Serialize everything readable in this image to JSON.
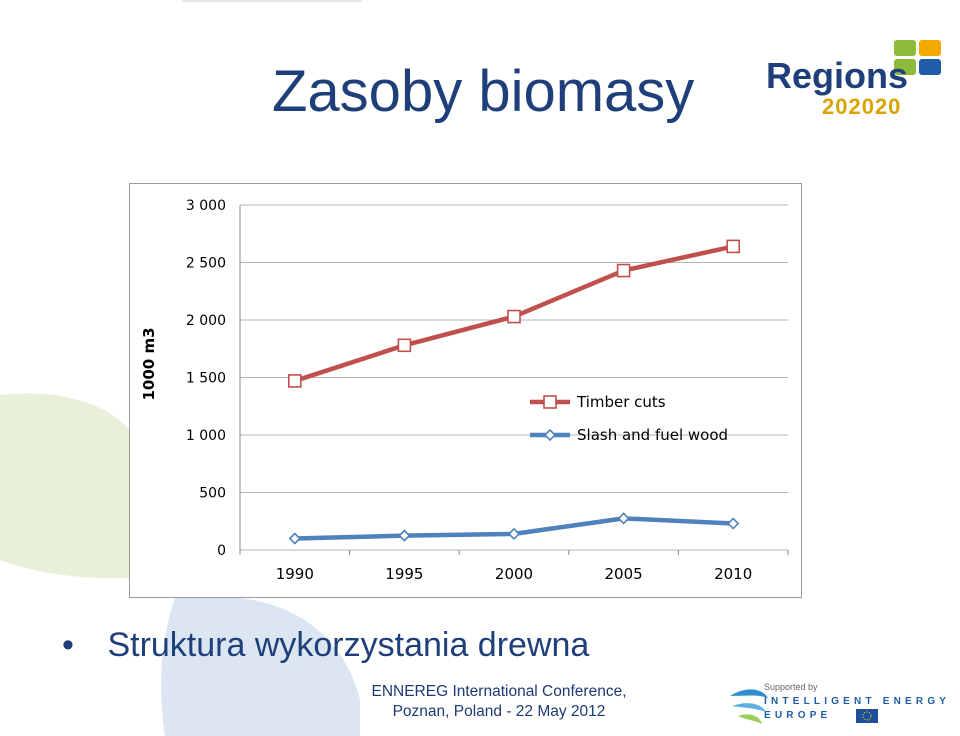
{
  "slide": {
    "title": "Zasoby biomasy",
    "bullet": "Struktura wykorzystania drewna",
    "footer_line1": "ENNEREG International Conference,",
    "footer_line2": "Poznan, Poland - 22 May 2012"
  },
  "logo": {
    "word": "Regions",
    "number": "202020",
    "icon": "four-squares-logo-icon"
  },
  "ie_logo": {
    "supported": "Supported by",
    "line1": "INTELLIGENT ENERGY",
    "line2": "EUROPE",
    "icon": "eu-flag-icon"
  },
  "colors": {
    "title": "#1f3f7a",
    "timber": "#c0504d",
    "slash": "#4f81bd",
    "bg_green": "#e9f0d9",
    "bg_blue": "#dce6f2"
  },
  "chart_data": {
    "type": "line",
    "title": "",
    "xlabel": "",
    "ylabel": "1000 m3",
    "x": [
      1990,
      1995,
      2000,
      2005,
      2010
    ],
    "xticks": [
      "1990",
      "1995",
      "2000",
      "2005",
      "2010"
    ],
    "yticks": [
      "0",
      "500",
      "1 000",
      "1 500",
      "2 000",
      "2 500",
      "3 000"
    ],
    "ylim": [
      0,
      3000
    ],
    "grid": true,
    "legend": "right",
    "series": [
      {
        "name": "Timber cuts",
        "values": [
          1470,
          1780,
          2030,
          2430,
          2640
        ],
        "color": "#c0504d",
        "marker": "square"
      },
      {
        "name": "Slash and fuel wood",
        "values": [
          100,
          125,
          140,
          275,
          230
        ],
        "color": "#4f81bd",
        "marker": "diamond"
      }
    ]
  }
}
